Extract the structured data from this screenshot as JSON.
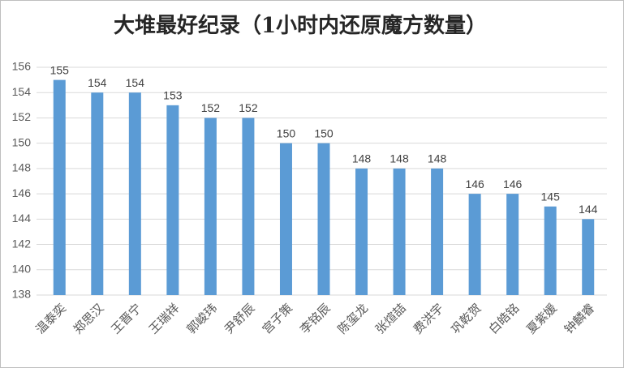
{
  "chart_data": {
    "type": "bar",
    "title": "大堆最好纪录（1小时内还原魔方数量）",
    "categories": [
      "温泰奕",
      "郑思汉",
      "王晋宁",
      "王瑞祥",
      "郭峻玮",
      "尹舒辰",
      "宫子策",
      "李铭辰",
      "陈玺龙",
      "张煊喆",
      "费洪宇",
      "巩乾贺",
      "白皓铭",
      "夏紫媛",
      "钟麟睿"
    ],
    "values": [
      155,
      154,
      154,
      153,
      152,
      152,
      150,
      150,
      148,
      148,
      148,
      146,
      146,
      145,
      144
    ],
    "color": "#5b9bd5",
    "ylim": [
      138,
      156
    ],
    "yticks": [
      138,
      140,
      142,
      144,
      146,
      148,
      150,
      152,
      154,
      156
    ],
    "grid": true
  }
}
